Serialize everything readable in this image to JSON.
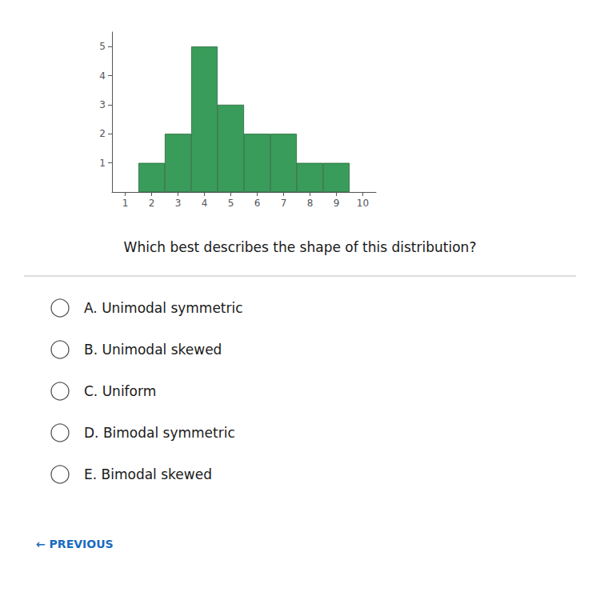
{
  "chart_data": {
    "type": "bar",
    "x": [
      2,
      3,
      4,
      5,
      6,
      7,
      8,
      9
    ],
    "values": [
      1,
      2,
      5,
      3,
      2,
      2,
      1,
      1
    ],
    "color": "#3a9c5a",
    "xlim": [
      0.5,
      10.5
    ],
    "xticks": [
      1,
      2,
      3,
      4,
      5,
      6,
      7,
      8,
      9,
      10
    ],
    "ylim": [
      0,
      5.5
    ],
    "yticks": [
      1,
      2,
      3,
      4,
      5
    ],
    "grid": false,
    "annotations": [
      "Which best describes the shape of this distribution?",
      "A. Unimodal symmetric",
      "B. Unimodal skewed",
      "C. Uniform",
      "D. Bimodal symmetric",
      "E. Bimodal skewed",
      "← PREVIOUS"
    ]
  }
}
